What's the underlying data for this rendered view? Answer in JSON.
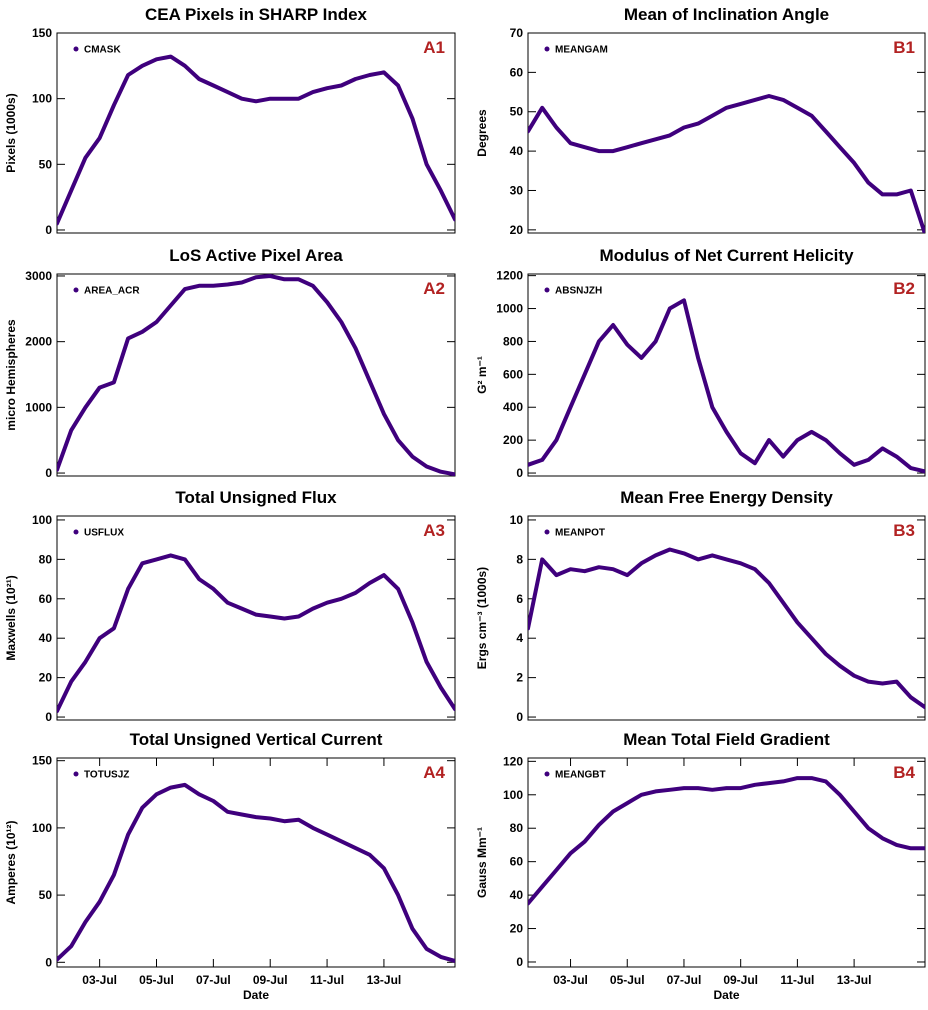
{
  "chart_data": [
    {
      "type": "line",
      "title": "CEA Pixels in SHARP Index",
      "ylabel": "Pixels (1000s)",
      "annotation": "A1",
      "x": [
        1.5,
        2,
        2.5,
        3,
        3.5,
        4,
        4.5,
        5,
        5.5,
        6,
        6.5,
        7,
        7.5,
        8,
        8.5,
        9,
        9.5,
        10,
        10.5,
        11,
        11.5,
        12,
        12.5,
        13,
        13.5,
        14,
        14.5,
        15,
        15.5
      ],
      "series": [
        {
          "name": "CMASK",
          "color": "#3f007d",
          "values": [
            5,
            30,
            55,
            70,
            95,
            118,
            125,
            130,
            132,
            125,
            115,
            110,
            105,
            100,
            98,
            100,
            100,
            100,
            105,
            108,
            110,
            115,
            118,
            120,
            110,
            85,
            50,
            30,
            8
          ]
        }
      ],
      "xlim": [
        1.5,
        15.5
      ],
      "ylim": [
        -2.3,
        150
      ],
      "yticks": [
        0,
        50,
        100,
        150
      ]
    },
    {
      "type": "line",
      "title": "Mean of Inclination Angle",
      "ylabel": "Degrees",
      "annotation": "B1",
      "x": [
        1.5,
        2,
        2.5,
        3,
        3.5,
        4,
        4.5,
        5,
        5.5,
        6,
        6.5,
        7,
        7.5,
        8,
        8.5,
        9,
        9.5,
        10,
        10.5,
        11,
        11.5,
        12,
        12.5,
        13,
        13.5,
        14,
        14.5,
        15,
        15.5
      ],
      "series": [
        {
          "name": "MEANGAM",
          "color": "#3f007d",
          "values": [
            45,
            51,
            46,
            42,
            41,
            40,
            40,
            41,
            42,
            43,
            44,
            46,
            47,
            49,
            51,
            52,
            53,
            54,
            53,
            51,
            49,
            45,
            41,
            37,
            32,
            29,
            29,
            30,
            19
          ]
        }
      ],
      "xlim": [
        1.5,
        15.5
      ],
      "ylim": [
        19.2,
        70
      ],
      "yticks": [
        20,
        30,
        40,
        50,
        60,
        70
      ]
    },
    {
      "type": "line",
      "title": "LoS Active Pixel Area",
      "ylabel": "micro Hemispheres",
      "annotation": "A2",
      "x": [
        1.5,
        2,
        2.5,
        3,
        3.5,
        4,
        4.5,
        5,
        5.5,
        6,
        6.5,
        7,
        7.5,
        8,
        8.5,
        9,
        9.5,
        10,
        10.5,
        11,
        11.5,
        12,
        12.5,
        13,
        13.5,
        14,
        14.5,
        15,
        15.5
      ],
      "series": [
        {
          "name": "AREA_ACR",
          "color": "#3f007d",
          "values": [
            50,
            650,
            1000,
            1300,
            1380,
            2050,
            2150,
            2300,
            2550,
            2800,
            2850,
            2850,
            2870,
            2900,
            2980,
            3000,
            2950,
            2950,
            2850,
            2600,
            2300,
            1900,
            1400,
            900,
            500,
            250,
            100,
            20,
            -20
          ]
        }
      ],
      "xlim": [
        1.5,
        15.5
      ],
      "ylim": [
        -45,
        3030
      ],
      "yticks": [
        0,
        1000,
        2000,
        3000
      ]
    },
    {
      "type": "line",
      "title": "Modulus of Net Current Helicity",
      "ylabel": "G² m⁻¹",
      "annotation": "B2",
      "x": [
        1.5,
        2,
        2.5,
        3,
        3.5,
        4,
        4.5,
        5,
        5.5,
        6,
        6.5,
        7,
        7.5,
        8,
        8.5,
        9,
        9.5,
        10,
        10.5,
        11,
        11.5,
        12,
        12.5,
        13,
        13.5,
        14,
        14.5,
        15,
        15.5
      ],
      "series": [
        {
          "name": "ABSNJZH",
          "color": "#3f007d",
          "values": [
            50,
            80,
            200,
            400,
            600,
            800,
            900,
            780,
            700,
            800,
            1000,
            1050,
            700,
            400,
            250,
            120,
            60,
            200,
            100,
            200,
            250,
            200,
            120,
            50,
            80,
            150,
            100,
            30,
            10
          ]
        }
      ],
      "xlim": [
        1.5,
        15.5
      ],
      "ylim": [
        -18,
        1210
      ],
      "yticks": [
        0,
        200,
        400,
        600,
        800,
        1000,
        1200
      ]
    },
    {
      "type": "line",
      "title": "Total Unsigned Flux",
      "ylabel": "Maxwells (10²¹)",
      "annotation": "A3",
      "x": [
        1.5,
        2,
        2.5,
        3,
        3.5,
        4,
        4.5,
        5,
        5.5,
        6,
        6.5,
        7,
        7.5,
        8,
        8.5,
        9,
        9.5,
        10,
        10.5,
        11,
        11.5,
        12,
        12.5,
        13,
        13.5,
        14,
        14.5,
        15,
        15.5
      ],
      "series": [
        {
          "name": "USFLUX",
          "color": "#3f007d",
          "values": [
            3,
            18,
            28,
            40,
            45,
            65,
            78,
            80,
            82,
            80,
            70,
            65,
            58,
            55,
            52,
            51,
            50,
            51,
            55,
            58,
            60,
            63,
            68,
            72,
            65,
            48,
            28,
            15,
            4
          ]
        }
      ],
      "xlim": [
        1.5,
        15.5
      ],
      "ylim": [
        -1.5,
        102
      ],
      "yticks": [
        0,
        20,
        40,
        60,
        80,
        100
      ]
    },
    {
      "type": "line",
      "title": "Mean Free Energy Density",
      "ylabel": "Ergs cm⁻³ (1000s)",
      "annotation": "B3",
      "x": [
        1.5,
        2,
        2.5,
        3,
        3.5,
        4,
        4.5,
        5,
        5.5,
        6,
        6.5,
        7,
        7.5,
        8,
        8.5,
        9,
        9.5,
        10,
        10.5,
        11,
        11.5,
        12,
        12.5,
        13,
        13.5,
        14,
        14.5,
        15,
        15.5
      ],
      "series": [
        {
          "name": "MEANPOT",
          "color": "#3f007d",
          "values": [
            4.5,
            8,
            7.2,
            7.5,
            7.4,
            7.6,
            7.5,
            7.2,
            7.8,
            8.2,
            8.5,
            8.3,
            8,
            8.2,
            8,
            7.8,
            7.5,
            6.8,
            5.8,
            4.8,
            4,
            3.2,
            2.6,
            2.1,
            1.8,
            1.7,
            1.8,
            1,
            0.5
          ]
        }
      ],
      "xlim": [
        1.5,
        15.5
      ],
      "ylim": [
        -0.15,
        10.2
      ],
      "yticks": [
        0,
        2,
        4,
        6,
        8,
        10
      ]
    },
    {
      "type": "line",
      "title": "Total Unsigned Vertical Current",
      "ylabel": "Amperes (10¹²)",
      "annotation": "A4",
      "xlabel": "Date",
      "x": [
        1.5,
        2,
        2.5,
        3,
        3.5,
        4,
        4.5,
        5,
        5.5,
        6,
        6.5,
        7,
        7.5,
        8,
        8.5,
        9,
        9.5,
        10,
        10.5,
        11,
        11.5,
        12,
        12.5,
        13,
        13.5,
        14,
        14.5,
        15,
        15.5
      ],
      "series": [
        {
          "name": "TOTUSJZ",
          "color": "#3f007d",
          "values": [
            2,
            12,
            30,
            45,
            65,
            95,
            115,
            125,
            130,
            132,
            125,
            120,
            112,
            110,
            108,
            107,
            105,
            106,
            100,
            95,
            90,
            85,
            80,
            70,
            50,
            25,
            10,
            4,
            1
          ]
        }
      ],
      "xlim": [
        1.5,
        15.5
      ],
      "ylim": [
        -3.5,
        152
      ],
      "yticks": [
        0,
        50,
        100,
        150
      ],
      "xticks": [
        {
          "value": 3,
          "label": "03-Jul"
        },
        {
          "value": 5,
          "label": "05-Jul"
        },
        {
          "value": 7,
          "label": "07-Jul"
        },
        {
          "value": 9,
          "label": "09-Jul"
        },
        {
          "value": 11,
          "label": "11-Jul"
        },
        {
          "value": 13,
          "label": "13-Jul"
        }
      ]
    },
    {
      "type": "line",
      "title": "Mean Total Field Gradient",
      "ylabel": "Gauss Mm⁻¹",
      "annotation": "B4",
      "xlabel": "Date",
      "x": [
        1.5,
        2,
        2.5,
        3,
        3.5,
        4,
        4.5,
        5,
        5.5,
        6,
        6.5,
        7,
        7.5,
        8,
        8.5,
        9,
        9.5,
        10,
        10.5,
        11,
        11.5,
        12,
        12.5,
        13,
        13.5,
        14,
        14.5,
        15,
        15.5
      ],
      "series": [
        {
          "name": "MEANGBT",
          "color": "#3f007d",
          "values": [
            35,
            45,
            55,
            65,
            72,
            82,
            90,
            95,
            100,
            102,
            103,
            104,
            104,
            103,
            104,
            104,
            106,
            107,
            108,
            110,
            110,
            108,
            100,
            90,
            80,
            74,
            70,
            68,
            68
          ]
        }
      ],
      "xlim": [
        1.5,
        15.5
      ],
      "ylim": [
        -3,
        122
      ],
      "yticks": [
        0,
        20,
        40,
        60,
        80,
        100,
        120
      ],
      "xticks": [
        {
          "value": 3,
          "label": "03-Jul"
        },
        {
          "value": 5,
          "label": "05-Jul"
        },
        {
          "value": 7,
          "label": "07-Jul"
        },
        {
          "value": 9,
          "label": "09-Jul"
        },
        {
          "value": 11,
          "label": "11-Jul"
        },
        {
          "value": 13,
          "label": "13-Jul"
        }
      ]
    }
  ]
}
